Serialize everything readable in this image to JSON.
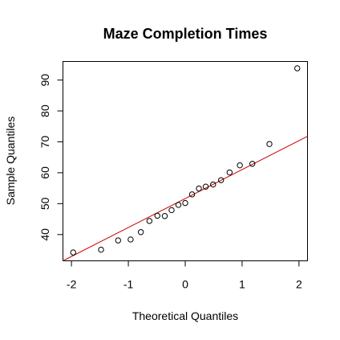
{
  "chart_data": {
    "type": "scatter",
    "title": "Maze Completion Times",
    "xlabel": "Theoretical Quantiles",
    "ylabel": "Sample Quantiles",
    "xlim": [
      -2.15,
      2.15
    ],
    "ylim": [
      31.5,
      96
    ],
    "xticks": [
      -2,
      -1,
      0,
      1,
      2
    ],
    "xtick_labels": [
      "-2",
      "-1",
      "0",
      "1",
      "2"
    ],
    "yticks": [
      40,
      50,
      60,
      70,
      80,
      90
    ],
    "ytick_labels": [
      "40",
      "50",
      "60",
      "70",
      "80",
      "90"
    ],
    "grid": false,
    "points": [
      {
        "x": -1.97,
        "y": 34.2
      },
      {
        "x": -1.48,
        "y": 35.1
      },
      {
        "x": -1.18,
        "y": 38.1
      },
      {
        "x": -0.96,
        "y": 38.4
      },
      {
        "x": -0.78,
        "y": 40.8
      },
      {
        "x": -0.63,
        "y": 44.4
      },
      {
        "x": -0.49,
        "y": 46.1
      },
      {
        "x": -0.36,
        "y": 46.0
      },
      {
        "x": -0.24,
        "y": 47.9
      },
      {
        "x": -0.12,
        "y": 49.6
      },
      {
        "x": 0.0,
        "y": 50.2
      },
      {
        "x": 0.12,
        "y": 53.0
      },
      {
        "x": 0.24,
        "y": 54.9
      },
      {
        "x": 0.36,
        "y": 55.5
      },
      {
        "x": 0.49,
        "y": 56.2
      },
      {
        "x": 0.63,
        "y": 57.6
      },
      {
        "x": 0.78,
        "y": 60.1
      },
      {
        "x": 0.96,
        "y": 62.4
      },
      {
        "x": 1.18,
        "y": 62.9
      },
      {
        "x": 1.48,
        "y": 69.3
      },
      {
        "x": 1.97,
        "y": 93.8
      }
    ],
    "reference_line": {
      "x": [
        -2.15,
        2.15
      ],
      "y": [
        31.5,
        71.8
      ],
      "color": "#cc0000"
    }
  }
}
